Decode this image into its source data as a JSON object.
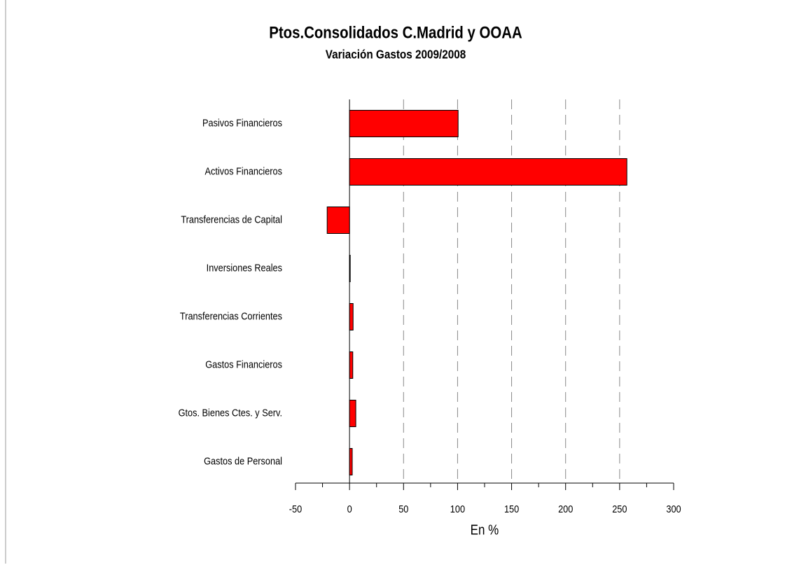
{
  "chart_data": {
    "type": "bar",
    "orientation": "horizontal",
    "title": "Ptos.Consolidados C.Madrid y OOAA",
    "subtitle": "Variación Gastos 2009/2008",
    "x_label": "En %",
    "categories": [
      "Pasivos Financieros",
      "Activos Financieros",
      "Transferencias de Capital",
      "Inversiones Reales",
      "Transferencias Corrientes",
      "Gastos Financieros",
      "Gtos. Bienes Ctes. y Serv.",
      "Gastos de Personal"
    ],
    "values": [
      100.5,
      256.7,
      -20.7,
      0.5,
      3.3,
      3,
      5.8,
      2.5
    ],
    "color": "#ff0000",
    "xlim": [
      -50,
      300
    ],
    "xticks": [
      -50,
      0,
      50,
      100,
      150,
      200,
      250,
      300
    ],
    "grid": true
  }
}
